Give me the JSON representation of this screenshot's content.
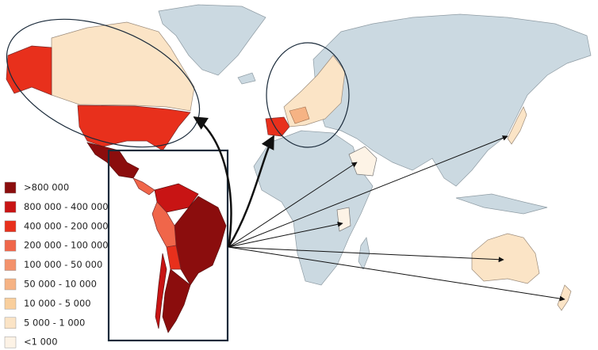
{
  "legend": {
    "items": [
      {
        "label": ">800 000",
        "color": "#8b0d0d"
      },
      {
        "label": "800 000 - 400 000",
        "color": "#c81414"
      },
      {
        "label": "400 000 - 200 000",
        "color": "#e8301c"
      },
      {
        "label": "200 000 - 100 000",
        "color": "#f0664a"
      },
      {
        "label": "100 000 - 50 000",
        "color": "#f4926b"
      },
      {
        "label": "50 000 - 10 000",
        "color": "#f6b384"
      },
      {
        "label": "10 000 - 5 000",
        "color": "#f9cf9d"
      },
      {
        "label": "5 000 - 1 000",
        "color": "#fbe4c6"
      },
      {
        "label": "<1 000",
        "color": "#fdf3e6"
      }
    ]
  }
}
